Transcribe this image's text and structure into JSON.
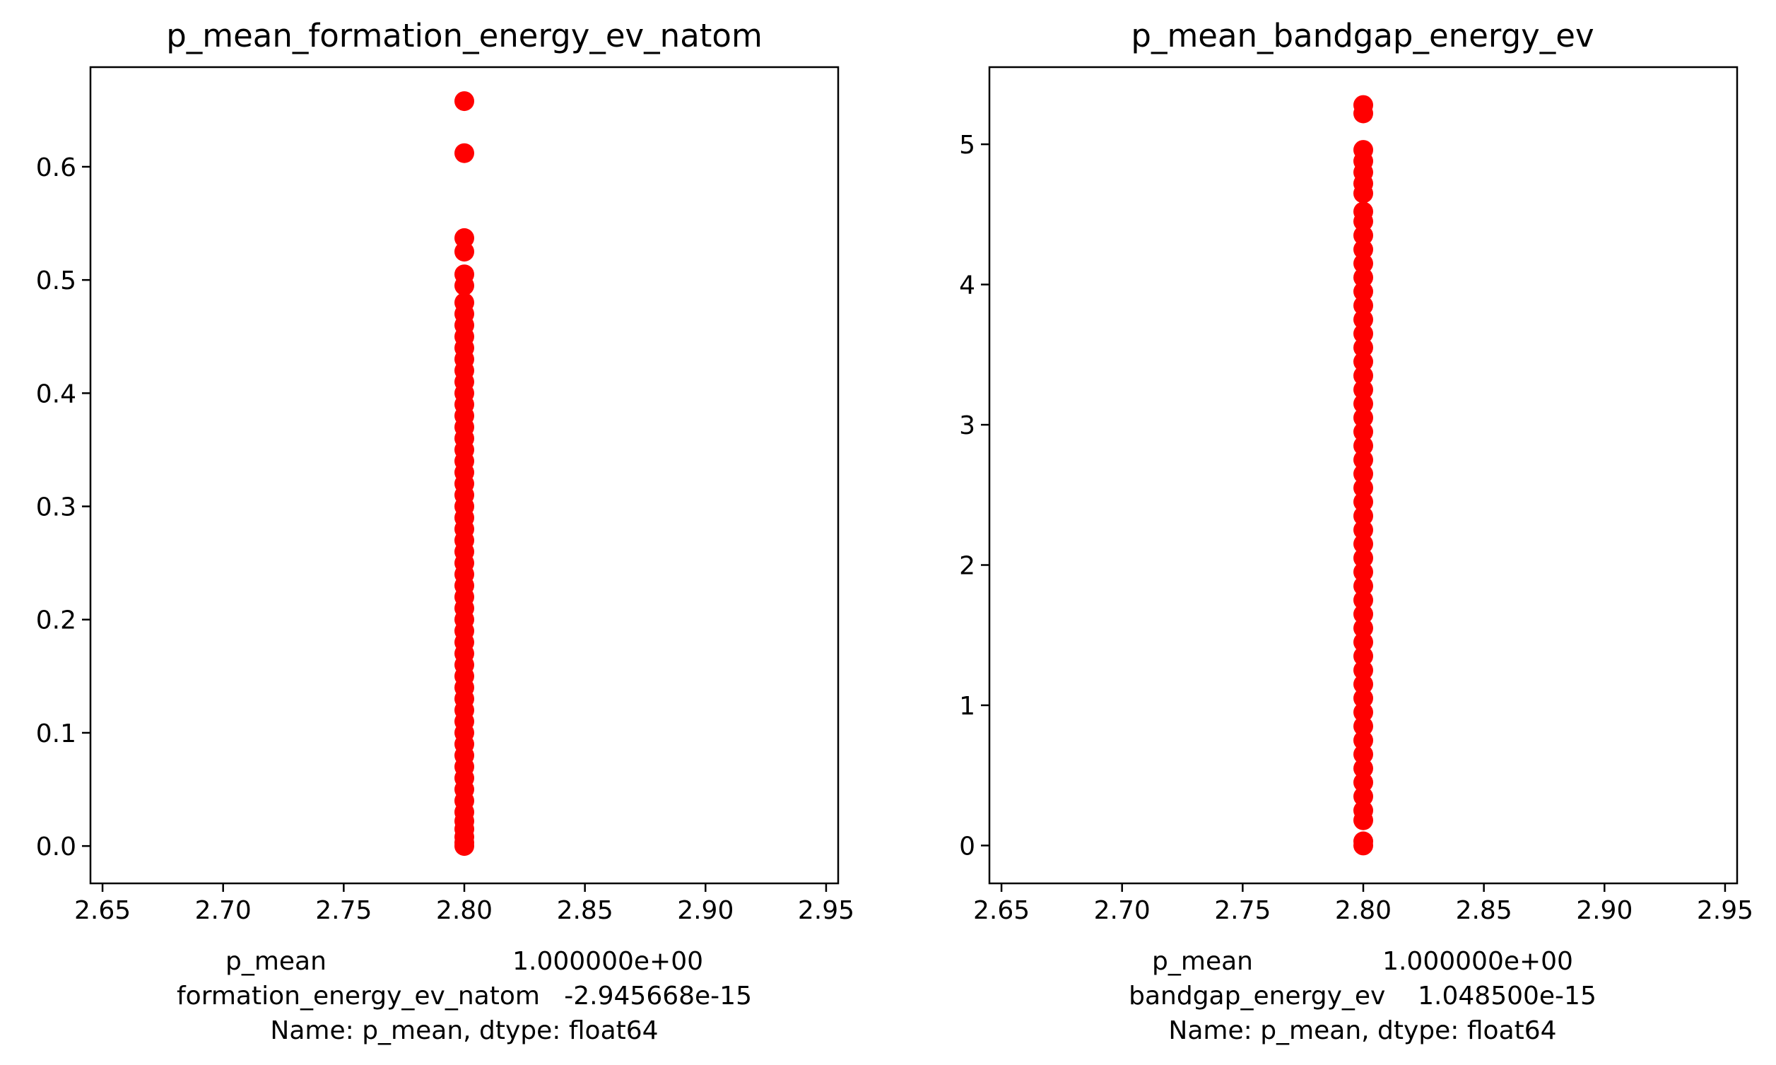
{
  "chart_data": [
    {
      "type": "scatter",
      "title": "p_mean_formation_energy_ev_natom",
      "xlabel_lines": [
        "p_mean                       1.000000e+00",
        "formation_energy_ev_natom   -2.945668e-15",
        "Name: p_mean, dtype: float64"
      ],
      "ylabel": "",
      "xlim": [
        2.645,
        2.955
      ],
      "ylim": [
        -0.033,
        0.688
      ],
      "x_ticks": [
        2.65,
        2.7,
        2.75,
        2.8,
        2.85,
        2.9,
        2.95
      ],
      "x_tick_labels": [
        "2.65",
        "2.70",
        "2.75",
        "2.80",
        "2.85",
        "2.90",
        "2.95"
      ],
      "y_ticks": [
        0.0,
        0.1,
        0.2,
        0.3,
        0.4,
        0.5,
        0.6
      ],
      "y_tick_labels": [
        "0.0",
        "0.1",
        "0.2",
        "0.3",
        "0.4",
        "0.5",
        "0.6"
      ],
      "grid": false,
      "marker_color": "#ff0000",
      "series": [
        {
          "x": 2.8,
          "y": [
            0.0,
            0.003,
            0.008,
            0.015,
            0.022,
            0.03,
            0.04,
            0.05,
            0.06,
            0.07,
            0.08,
            0.09,
            0.1,
            0.11,
            0.12,
            0.13,
            0.14,
            0.15,
            0.16,
            0.17,
            0.18,
            0.19,
            0.2,
            0.21,
            0.22,
            0.23,
            0.24,
            0.25,
            0.26,
            0.27,
            0.28,
            0.29,
            0.3,
            0.31,
            0.32,
            0.33,
            0.34,
            0.35,
            0.36,
            0.37,
            0.38,
            0.39,
            0.4,
            0.41,
            0.42,
            0.43,
            0.44,
            0.45,
            0.46,
            0.47,
            0.48,
            0.495,
            0.505,
            0.525,
            0.537,
            0.612,
            0.658
          ]
        }
      ]
    },
    {
      "type": "scatter",
      "title": "p_mean_bandgap_energy_ev",
      "xlabel_lines": [
        "p_mean                1.000000e+00",
        "bandgap_energy_ev    1.048500e-15",
        "Name: p_mean, dtype: float64"
      ],
      "ylabel": "",
      "xlim": [
        2.645,
        2.955
      ],
      "ylim": [
        -0.27,
        5.55
      ],
      "x_ticks": [
        2.65,
        2.7,
        2.75,
        2.8,
        2.85,
        2.9,
        2.95
      ],
      "x_tick_labels": [
        "2.65",
        "2.70",
        "2.75",
        "2.80",
        "2.85",
        "2.90",
        "2.95"
      ],
      "y_ticks": [
        0,
        1,
        2,
        3,
        4,
        5
      ],
      "y_tick_labels": [
        "0",
        "1",
        "2",
        "3",
        "4",
        "5"
      ],
      "grid": false,
      "marker_color": "#ff0000",
      "series": [
        {
          "x": 2.8,
          "y": [
            0.0,
            0.03,
            0.18,
            0.25,
            0.35,
            0.45,
            0.55,
            0.65,
            0.75,
            0.85,
            0.95,
            1.05,
            1.15,
            1.25,
            1.35,
            1.45,
            1.55,
            1.65,
            1.75,
            1.85,
            1.95,
            2.05,
            2.15,
            2.25,
            2.35,
            2.45,
            2.55,
            2.65,
            2.75,
            2.85,
            2.95,
            3.05,
            3.15,
            3.25,
            3.35,
            3.45,
            3.55,
            3.65,
            3.75,
            3.85,
            3.95,
            4.05,
            4.15,
            4.25,
            4.35,
            4.45,
            4.52,
            4.65,
            4.72,
            4.8,
            4.88,
            4.96,
            5.22,
            5.28
          ]
        }
      ]
    }
  ]
}
